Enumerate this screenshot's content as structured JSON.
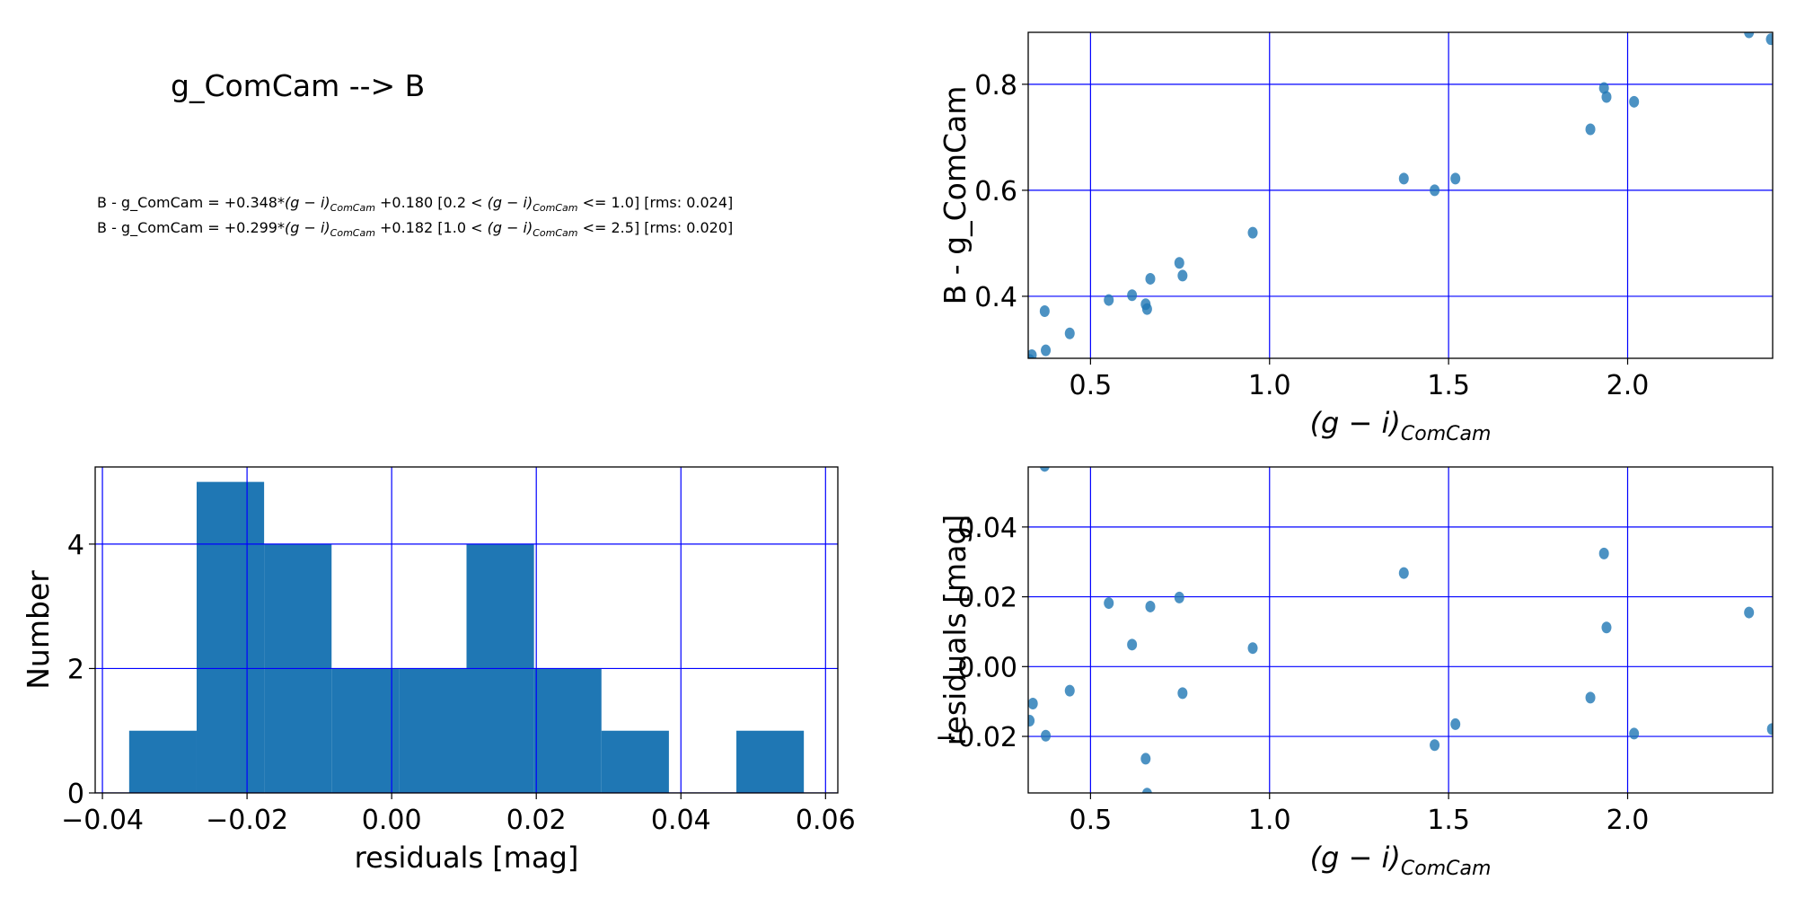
{
  "figure_title": "g_ComCam --> B",
  "equations": [
    {
      "lhs": "B - g_ComCam = +0.348*",
      "color": "(g − i)",
      "sub": "ComCam",
      "mid": " +0.180  [0.2 < ",
      "range_color": "(g − i)",
      "range_sub": "ComCam",
      "tail": " <= 1.0]  [rms: 0.024]"
    },
    {
      "lhs": "B - g_ComCam = +0.299*",
      "color": "(g − i)",
      "sub": "ComCam",
      "mid": " +0.182  [1.0 < ",
      "range_color": "(g − i)",
      "range_sub": "ComCam",
      "tail": " <= 2.5]  [rms: 0.020]"
    }
  ],
  "colors": {
    "marker": "#1f77b4",
    "grid": "#0000ff",
    "bar": "#1f77b4"
  },
  "chart_data": [
    {
      "id": "color-term",
      "type": "scatter",
      "xlabel_main": "(g − i)",
      "xlabel_sub": "ComCam",
      "ylabel": "B - g_ComCam",
      "xlim": [
        0.326,
        2.405
      ],
      "ylim": [
        0.283,
        0.898
      ],
      "xticks": [
        0.5,
        1.0,
        1.5,
        2.0
      ],
      "xtick_labels": [
        "0.5",
        "1.0",
        "1.5",
        "2.0"
      ],
      "yticks": [
        0.4,
        0.6,
        0.8
      ],
      "ytick_labels": [
        "0.4",
        "0.6",
        "0.8"
      ],
      "grid": true,
      "x": [
        0.33,
        0.336,
        0.372,
        0.375,
        0.442,
        0.551,
        0.616,
        0.654,
        0.658,
        0.667,
        0.748,
        0.757,
        0.953,
        1.375,
        1.461,
        1.519,
        1.896,
        1.934,
        1.941,
        2.018,
        2.339,
        2.4
      ],
      "y": [
        0.28,
        0.289,
        0.372,
        0.298,
        0.33,
        0.393,
        0.402,
        0.385,
        0.376,
        0.433,
        0.463,
        0.439,
        0.52,
        0.622,
        0.6,
        0.622,
        0.715,
        0.793,
        0.776,
        0.767,
        0.898,
        0.885
      ]
    },
    {
      "id": "residual-hist",
      "type": "bar",
      "xlabel": "residuals [mag]",
      "ylabel": "Number",
      "xlim": [
        -0.041,
        0.0617
      ],
      "ylim": [
        0,
        5.24
      ],
      "xticks": [
        -0.04,
        -0.02,
        0.0,
        0.02,
        0.04,
        0.06
      ],
      "xtick_labels": [
        "−0.04",
        "−0.02",
        "0.00",
        "0.02",
        "0.04",
        "0.06"
      ],
      "yticks": [
        0,
        2,
        4
      ],
      "ytick_labels": [
        "0",
        "2",
        "4"
      ],
      "grid": true,
      "bin_edges": [
        -0.0363,
        -0.02697,
        -0.01764,
        -0.00831,
        0.00102,
        0.01035,
        0.01968,
        0.02901,
        0.03834,
        0.04767,
        0.057
      ],
      "values": [
        1,
        5,
        4,
        2,
        2,
        4,
        2,
        1,
        0,
        1
      ]
    },
    {
      "id": "residuals",
      "type": "scatter",
      "xlabel_main": "(g − i)",
      "xlabel_sub": "ComCam",
      "ylabel": "residuals [mag]",
      "xlim": [
        0.326,
        2.405
      ],
      "ylim": [
        -0.0362,
        0.0572
      ],
      "xticks": [
        0.5,
        1.0,
        1.5,
        2.0
      ],
      "xtick_labels": [
        "0.5",
        "1.0",
        "1.5",
        "2.0"
      ],
      "yticks": [
        -0.02,
        0.0,
        0.02,
        0.04
      ],
      "ytick_labels": [
        "−0.02",
        "0.00",
        "0.02",
        "0.04"
      ],
      "grid": true,
      "x": [
        0.33,
        0.339,
        0.372,
        0.375,
        0.442,
        0.551,
        0.616,
        0.654,
        0.658,
        0.667,
        0.748,
        0.757,
        0.953,
        1.375,
        1.461,
        1.519,
        1.896,
        1.934,
        1.941,
        2.018,
        2.339,
        2.403
      ],
      "y": [
        -0.0155,
        -0.0106,
        0.0575,
        -0.0198,
        -0.0069,
        0.0182,
        0.0063,
        -0.0264,
        -0.0364,
        0.0172,
        0.0198,
        -0.0076,
        0.0053,
        0.0268,
        -0.0225,
        -0.0165,
        -0.0089,
        0.0324,
        0.0112,
        -0.0192,
        0.0155,
        -0.0179
      ]
    }
  ]
}
